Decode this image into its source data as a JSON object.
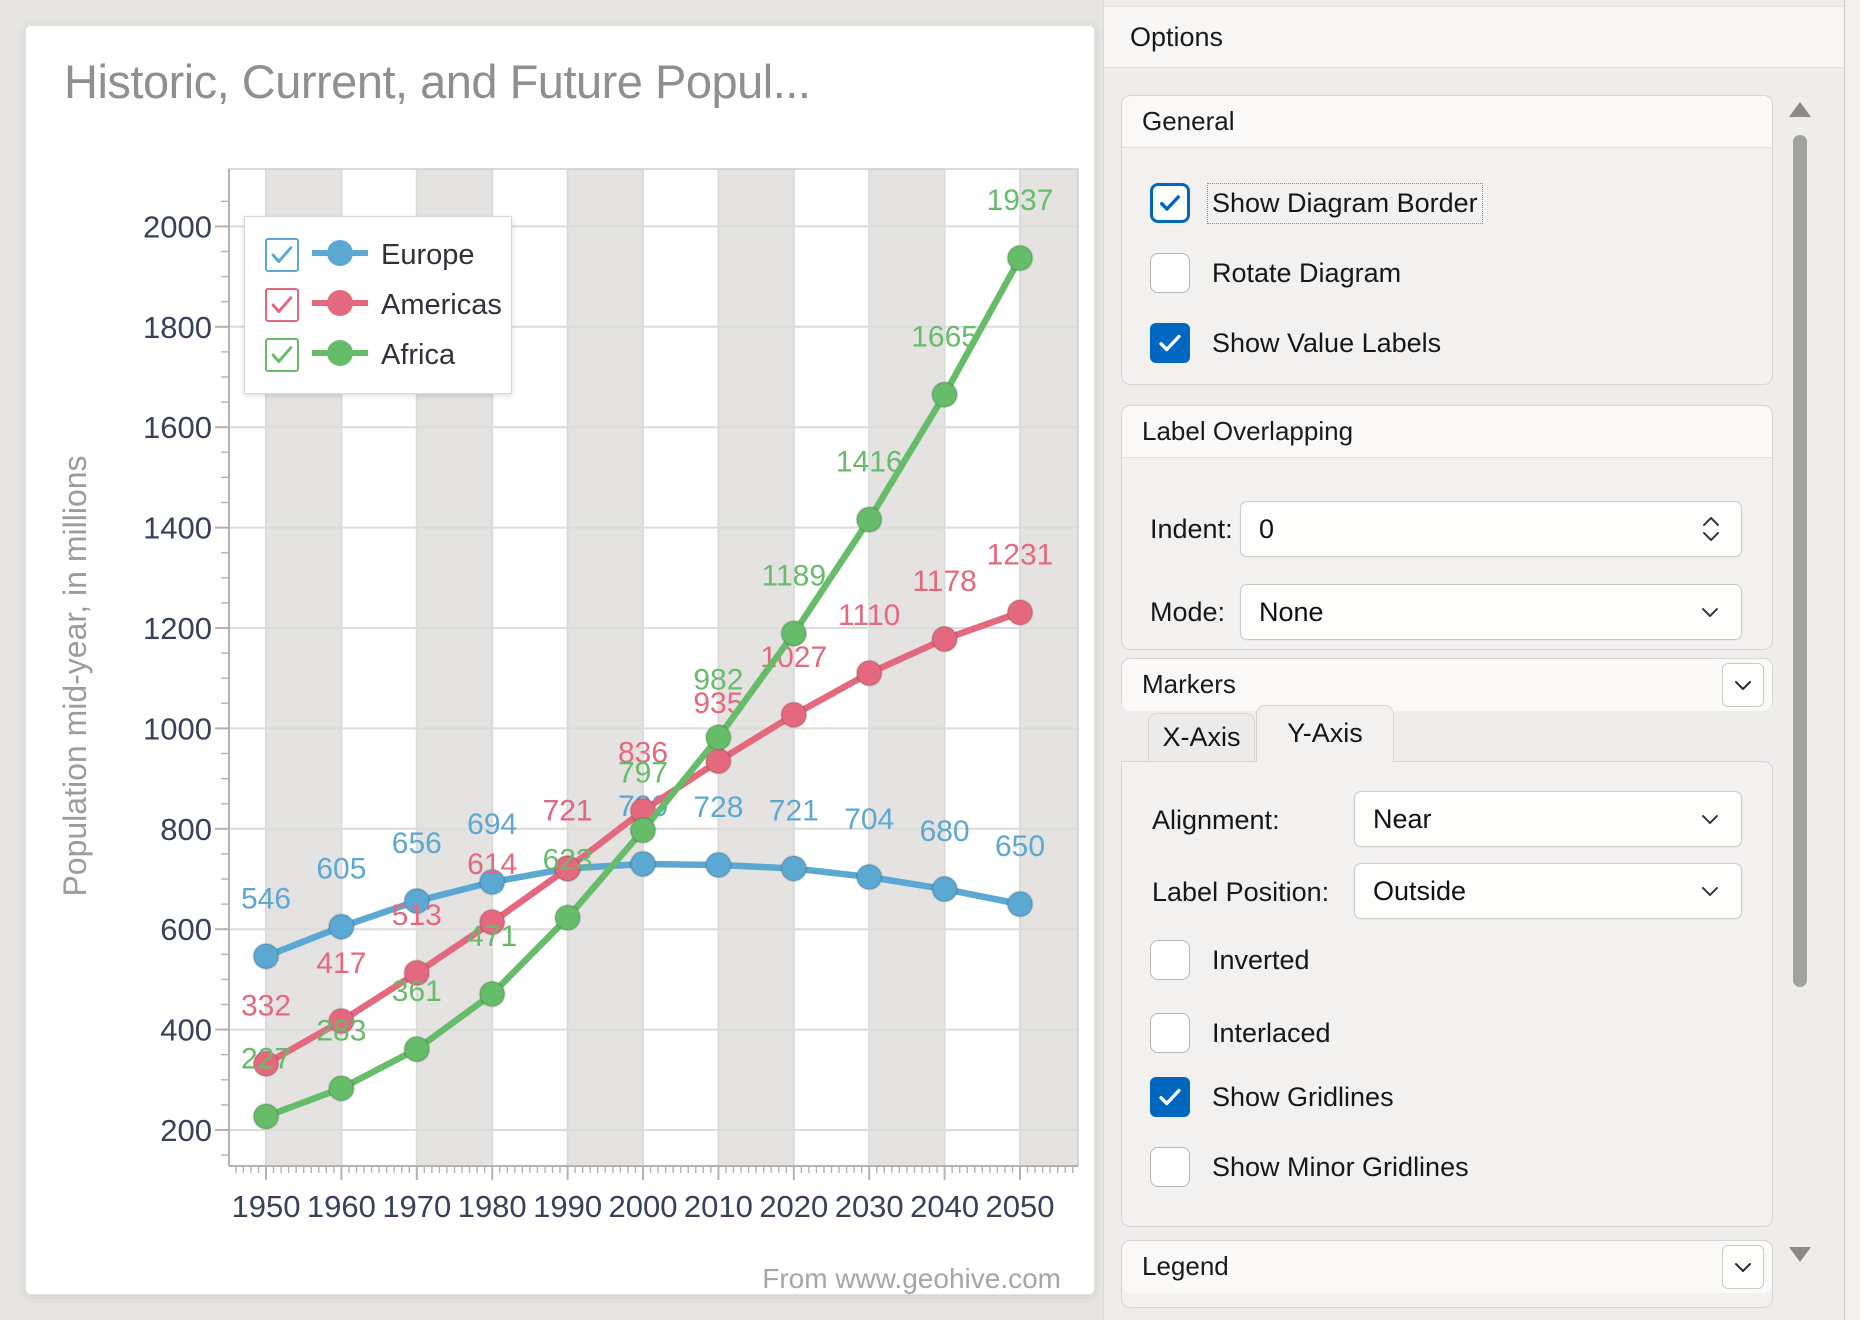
{
  "chart_card": {
    "attribution": "From www.geohive.com"
  },
  "chart_data": {
    "type": "line",
    "title": "Historic, Current, and Future Popul...",
    "ylabel": "Population mid-year, in millions",
    "x": [
      1950,
      1960,
      1970,
      1980,
      1990,
      2000,
      2010,
      2020,
      2030,
      2040,
      2050
    ],
    "series": [
      {
        "name": "Europe",
        "color": "#5BA8D2",
        "values": [
          546,
          605,
          656,
          694,
          721,
          730,
          728,
          721,
          704,
          680,
          650
        ]
      },
      {
        "name": "Americas",
        "color": "#E5697E",
        "values": [
          332,
          417,
          513,
          614,
          721,
          836,
          935,
          1027,
          1110,
          1178,
          1231
        ]
      },
      {
        "name": "Africa",
        "color": "#66BC69",
        "values": [
          227,
          283,
          361,
          471,
          623,
          797,
          982,
          1189,
          1416,
          1665,
          1937
        ]
      }
    ],
    "ylim": [
      130,
      2110
    ],
    "yticks": {
      "start": 200,
      "end": 2000,
      "step": 200,
      "minor_step": 50
    },
    "grid": true,
    "interlacing": "x-alternating-decades",
    "value_labels": true,
    "legend_position": "top-left",
    "colors": {
      "band": "#E4E3E2",
      "gridline": "#DBDBDA",
      "diagram_border": "#CFCDCB",
      "axis": "#B5B3B1",
      "tick_text": "#39405A"
    }
  },
  "options_panel": {
    "title": "Options",
    "accent_color": "#0067C0",
    "general": {
      "title": "General",
      "items": [
        {
          "label": "Show Diagram Border",
          "checked": true,
          "focused": true
        },
        {
          "label": "Rotate Diagram",
          "checked": false
        },
        {
          "label": "Show Value Labels",
          "checked": true
        }
      ]
    },
    "label_overlapping": {
      "title": "Label Overlapping",
      "indent_label": "Indent:",
      "indent_value": "0",
      "mode_label": "Mode:",
      "mode_value": "None"
    },
    "markers": {
      "title": "Markers",
      "collapsed": true
    },
    "axis_options": {
      "tabs": [
        {
          "label": "X-Axis"
        },
        {
          "label": "Y-Axis"
        }
      ],
      "active_tab": "Y-Axis",
      "alignment_label": "Alignment:",
      "alignment_value": "Near",
      "label_position_label": "Label Position:",
      "label_position_value": "Outside",
      "items": [
        {
          "label": "Inverted",
          "checked": false
        },
        {
          "label": "Interlaced",
          "checked": false
        },
        {
          "label": "Show Gridlines",
          "checked": true
        },
        {
          "label": "Show Minor Gridlines",
          "checked": false
        }
      ]
    },
    "legend_group": {
      "title": "Legend",
      "collapsed": true
    }
  }
}
